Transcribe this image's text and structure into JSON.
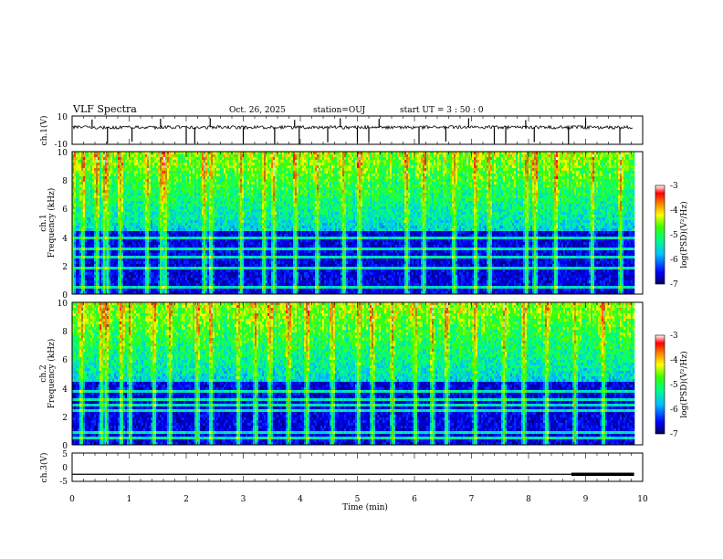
{
  "header": {
    "title": "VLF Spectra",
    "date": "Oct. 26, 2025",
    "station": "station=OUJ",
    "start_ut": "start  UT =   3 : 50 : 0"
  },
  "chart_data": [
    {
      "type": "line",
      "name": "ch1-waveform",
      "ylabel": "ch.1(V)",
      "ylim": [
        -10,
        10
      ],
      "yticks": [
        "10",
        "-10"
      ],
      "xlim": [
        0,
        10
      ],
      "baseline": 2,
      "noise_amplitude": 1.2,
      "spike_minutes": [
        0.35,
        0.62,
        1.05,
        1.55,
        2.0,
        2.15,
        2.42,
        3.0,
        3.55,
        3.9,
        3.98,
        4.48,
        4.7,
        5.0,
        5.2,
        5.38,
        6.08,
        6.55,
        6.95,
        7.4,
        7.6,
        7.95,
        8.1,
        8.7,
        9.0,
        9.6
      ]
    },
    {
      "type": "heatmap",
      "name": "ch1-spectrogram",
      "ylabel_line1": "ch.1",
      "ylabel_line2": "Frequency  (kHz)",
      "xlim": [
        0,
        9.85
      ],
      "ylim": [
        0,
        10
      ],
      "yticks": [
        "0",
        "2",
        "4",
        "6",
        "8",
        "10"
      ],
      "colorbar": {
        "label": "log(PSD)(V²/Hz)",
        "range": [
          -7,
          -3
        ],
        "ticks": [
          "-3",
          "-4",
          "-5",
          "-6",
          "-7"
        ]
      },
      "bursts": [
        0.0,
        0.17,
        0.42,
        0.55,
        0.6,
        0.83,
        1.3,
        1.55,
        1.62,
        2.3,
        2.42,
        2.95,
        3.35,
        3.52,
        3.9,
        4.28,
        4.75,
        5.02,
        5.85,
        6.15,
        6.68,
        7.06,
        7.3,
        7.95,
        8.1,
        8.46,
        9.1,
        9.6
      ]
    },
    {
      "type": "heatmap",
      "name": "ch2-spectrogram",
      "ylabel_line1": "ch.2",
      "ylabel_line2": "Frequency  (kHz)",
      "xlim": [
        0,
        9.85
      ],
      "ylim": [
        0,
        10
      ],
      "yticks": [
        "0",
        "2",
        "4",
        "6",
        "8",
        "10"
      ],
      "colorbar": {
        "label": "log(PSD)(V²/Hz)",
        "range": [
          -7,
          -3
        ],
        "ticks": [
          "-3",
          "-4",
          "-5",
          "-6",
          "-7"
        ]
      },
      "bursts": [
        0.15,
        0.5,
        0.58,
        0.85,
        1.0,
        1.42,
        1.7,
        2.18,
        2.42,
        2.9,
        3.2,
        3.45,
        3.78,
        4.1,
        4.55,
        5.0,
        5.25,
        5.6,
        6.0,
        6.3,
        6.55,
        7.05,
        7.55,
        7.9,
        8.3,
        8.8,
        9.3
      ]
    },
    {
      "type": "line",
      "name": "ch3-trace",
      "ylabel": "ch.3(V)",
      "ylim": [
        -5,
        5
      ],
      "yticks": [
        "5",
        "0",
        "-5"
      ],
      "xlim": [
        0,
        10
      ],
      "level": -2.5,
      "thick_segment": [
        8.75,
        9.85
      ],
      "xlabel": "Time  (min)",
      "xticks": [
        "0",
        "1",
        "2",
        "3",
        "4",
        "5",
        "6",
        "7",
        "8",
        "9",
        "10"
      ]
    }
  ]
}
